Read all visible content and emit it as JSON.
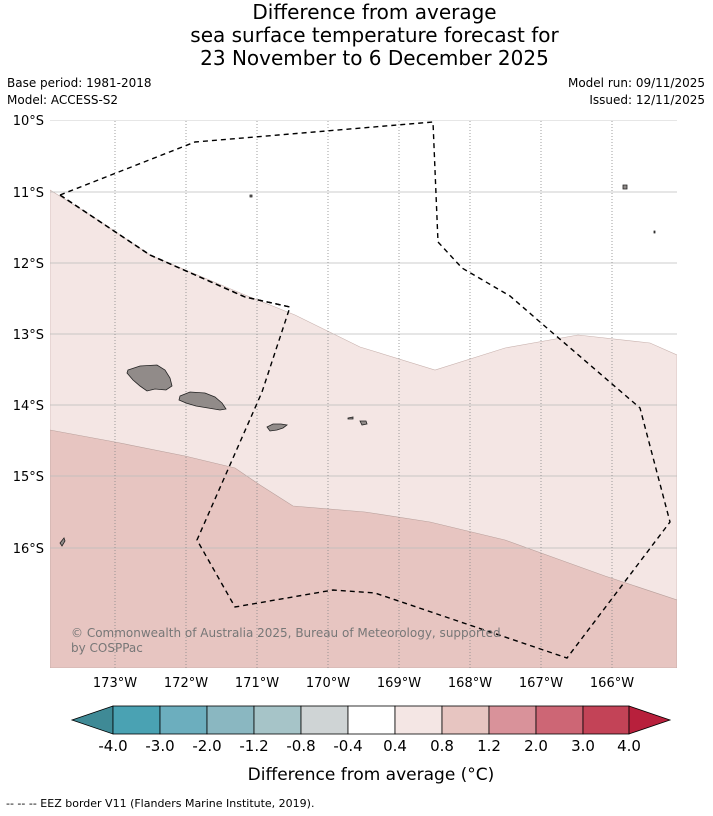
{
  "title": {
    "line1": "Difference from average",
    "line2": "sea surface temperature forecast for",
    "line3": "23 November to 6 December 2025"
  },
  "meta": {
    "base_period": "Base period: 1981-2018",
    "model": "Model: ACCESS-S2",
    "model_run": "Model run: 09/11/2025",
    "issued": "Issued: 12/11/2025"
  },
  "map": {
    "lat_labels": [
      "10°S",
      "11°S",
      "12°S",
      "13°S",
      "14°S",
      "15°S",
      "16°S"
    ],
    "lon_labels": [
      "173°W",
      "172°W",
      "171°W",
      "170°W",
      "169°W",
      "168°W",
      "167°W",
      "166°W"
    ],
    "land_color": "#918b89",
    "copyright": "© Commonwealth of Australia 2025, Bureau of Meteorology, supported by COSPPac"
  },
  "colorbar": {
    "title": "Difference from average (°C)",
    "tick_labels": [
      "-4.0",
      "-3.0",
      "-2.0",
      "-1.2",
      "-0.8",
      "-0.4",
      "0.4",
      "0.8",
      "1.2",
      "2.0",
      "3.0",
      "4.0"
    ],
    "colors": [
      "#3f8a96",
      "#4aa2b3",
      "#6caebe",
      "#8ab7c1",
      "#a6c4c8",
      "#cfd4d5",
      "#ffffff",
      "#f4e6e4",
      "#e7c5c1",
      "#d9929a",
      "#cd6675",
      "#c34357",
      "#b8203c"
    ]
  },
  "footnote": "--  --  -- EEZ border V11 (Flanders Marine Institute, 2019)."
}
